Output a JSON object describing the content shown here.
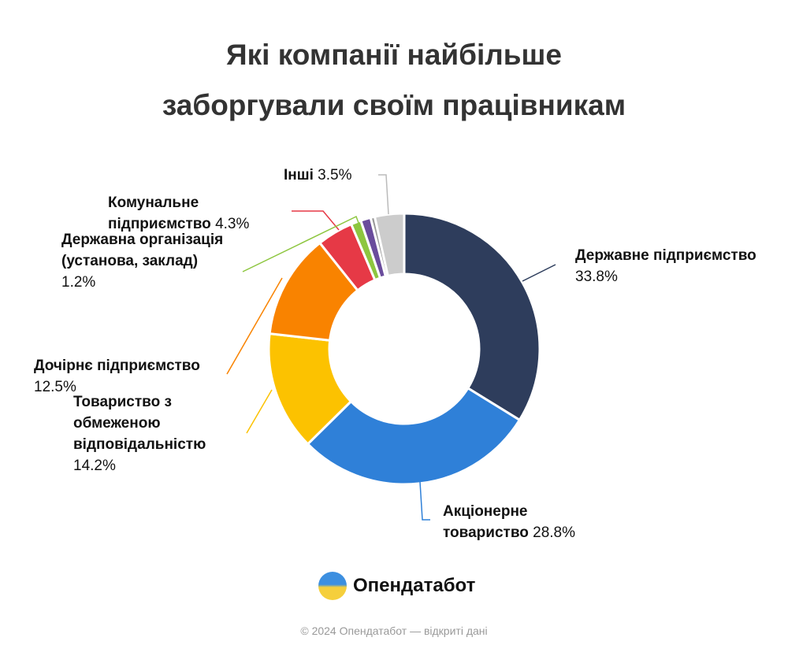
{
  "chart_data": {
    "type": "pie",
    "title_lines": [
      "Які компанії найбільше",
      "заборгували своїм працівникам"
    ],
    "donut": true,
    "slices": [
      {
        "name": "Державне підприємство",
        "value": 33.8,
        "label": "33.8%",
        "color": "#2e3d5c"
      },
      {
        "name": "Акціонерне товариство",
        "value": 28.8,
        "label": "28.8%",
        "color": "#2f80d8"
      },
      {
        "name": "Товариство з обмеженою відповідальністю",
        "value": 14.2,
        "label": "14.2%",
        "color": "#fcc200"
      },
      {
        "name": "Дочірнє підприємство",
        "value": 12.5,
        "label": "12.5%",
        "color": "#f98300"
      },
      {
        "name": "Комунальне підприємство",
        "value": 4.3,
        "label": "4.3%",
        "color": "#e63946"
      },
      {
        "name": "Державна організація (установа, заклад)",
        "value": 1.2,
        "label": "1.2%",
        "color": "#8dc63f"
      },
      {
        "name": "",
        "value": 1.2,
        "label": "",
        "color": "#6a4c9c"
      },
      {
        "name": "",
        "value": 0.5,
        "label": "",
        "color": "#999999"
      },
      {
        "name": "Інші",
        "value": 3.5,
        "label": "3.5%",
        "color": "#cccccc"
      }
    ]
  },
  "brand": {
    "name": "Опендатабот"
  },
  "footer": "© 2024 Опендатабот — відкриті дані"
}
